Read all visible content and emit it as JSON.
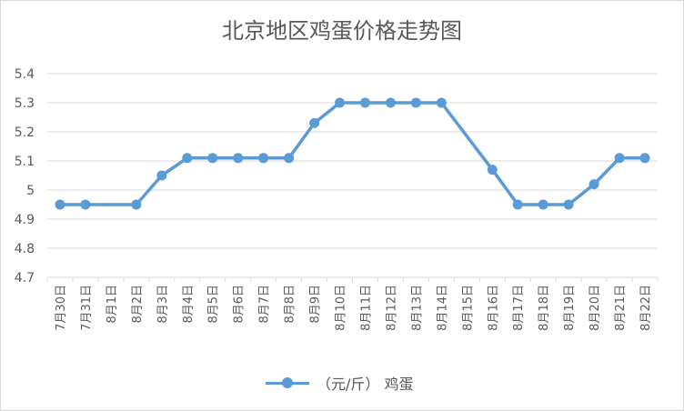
{
  "chart_data": {
    "type": "line",
    "title": "北京地区鸡蛋价格走势图",
    "categories": [
      "7月30日",
      "7月31日",
      "8月1日",
      "8月2日",
      "8月3日",
      "8月4日",
      "8月5日",
      "8月6日",
      "8月7日",
      "8月8日",
      "8月9日",
      "8月10日",
      "8月11日",
      "8月12日",
      "8月13日",
      "8月14日",
      "8月15日",
      "8月16日",
      "8月17日",
      "8月18日",
      "8月19日",
      "8月20日",
      "8月21日",
      "8月22日"
    ],
    "series": [
      {
        "name": "（元/斤） 鸡蛋",
        "values": [
          4.95,
          4.95,
          null,
          4.95,
          5.05,
          5.11,
          5.11,
          5.11,
          5.11,
          5.11,
          5.23,
          5.3,
          5.3,
          5.3,
          5.3,
          5.3,
          null,
          5.07,
          4.95,
          4.95,
          4.95,
          5.02,
          5.11,
          5.11
        ]
      }
    ],
    "ylim": [
      4.7,
      5.4
    ],
    "yticks": [
      "4.7",
      "4.8",
      "4.9",
      "5",
      "5.1",
      "5.2",
      "5.3",
      "5.4"
    ],
    "grid": true,
    "legend_position": "bottom",
    "colors": {
      "series": "#5b9bd5",
      "grid": "#d9d9d9",
      "text": "#595959"
    }
  }
}
